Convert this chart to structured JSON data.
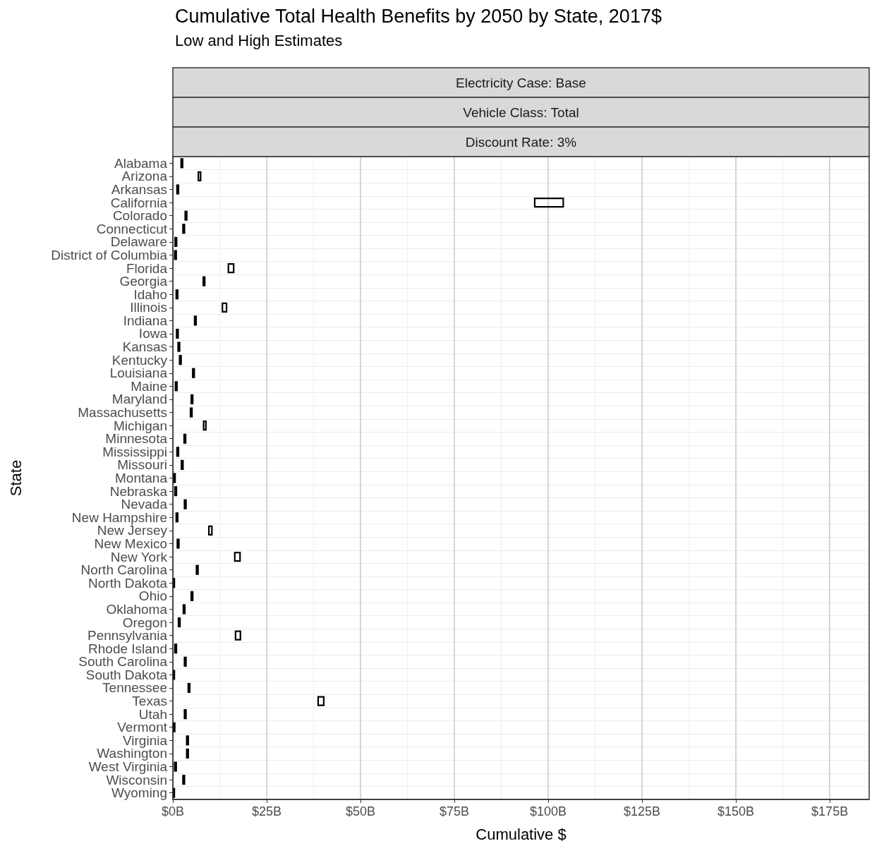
{
  "chart_data": {
    "type": "bar",
    "orientation": "horizontal",
    "title": "Cumulative Total Health Benefits by 2050 by State, 2017$",
    "subtitle": "Low and High Estimates",
    "annotations": [
      "Electricity Case: Base",
      "Vehicle Class: Total",
      "Discount Rate: 3%"
    ],
    "xlabel": "Cumulative $",
    "ylabel": "State",
    "categories": [
      "Alabama",
      "Arizona",
      "Arkansas",
      "California",
      "Colorado",
      "Connecticut",
      "Delaware",
      "District of Columbia",
      "Florida",
      "Georgia",
      "Idaho",
      "Illinois",
      "Indiana",
      "Iowa",
      "Kansas",
      "Kentucky",
      "Louisiana",
      "Maine",
      "Maryland",
      "Massachusetts",
      "Michigan",
      "Minnesota",
      "Mississippi",
      "Missouri",
      "Montana",
      "Nebraska",
      "Nevada",
      "New Hampshire",
      "New Jersey",
      "New Mexico",
      "New York",
      "North Carolina",
      "North Dakota",
      "Ohio",
      "Oklahoma",
      "Oregon",
      "Pennsylvania",
      "Rhode Island",
      "South Carolina",
      "South Dakota",
      "Tennessee",
      "Texas",
      "Utah",
      "Vermont",
      "Virginia",
      "Washington",
      "West Virginia",
      "Wisconsin",
      "Wyoming"
    ],
    "base": [
      2.2,
      6.8,
      1.1,
      96.4,
      3.3,
      2.7,
      0.6,
      0.5,
      14.8,
      8.1,
      0.9,
      13.2,
      5.8,
      1.0,
      1.4,
      1.8,
      5.3,
      0.7,
      4.9,
      4.7,
      8.2,
      3.0,
      1.1,
      2.3,
      0.2,
      0.55,
      3.1,
      0.9,
      9.6,
      1.2,
      16.5,
      6.3,
      0.1,
      4.9,
      2.8,
      1.5,
      16.7,
      0.55,
      3.1,
      0.1,
      4.1,
      38.7,
      3.1,
      0.1,
      3.7,
      3.7,
      0.5,
      2.7,
      0.1
    ],
    "values": [
      0.4,
      0.6,
      0.4,
      7.6,
      0.4,
      0.4,
      0.4,
      0.4,
      1.4,
      0.4,
      0.4,
      1.1,
      0.4,
      0.4,
      0.4,
      0.4,
      0.4,
      0.4,
      0.4,
      0.4,
      0.6,
      0.4,
      0.4,
      0.4,
      0.4,
      0.4,
      0.4,
      0.4,
      0.8,
      0.4,
      1.4,
      0.4,
      0.3,
      0.4,
      0.4,
      0.4,
      1.3,
      0.4,
      0.4,
      0.3,
      0.4,
      1.5,
      0.4,
      0.4,
      0.4,
      0.4,
      0.4,
      0.4,
      0.3
    ],
    "color": "#000000",
    "xlim": [
      0,
      185.5
    ],
    "xticks": [
      {
        "value": 0,
        "label": "$0B"
      },
      {
        "value": 25,
        "label": "$25B"
      },
      {
        "value": 50,
        "label": "$50B"
      },
      {
        "value": 75,
        "label": "$75B"
      },
      {
        "value": 100,
        "label": "$100B"
      },
      {
        "value": 125,
        "label": "$125B"
      },
      {
        "value": 150,
        "label": "$150B"
      },
      {
        "value": 175,
        "label": "$175B"
      }
    ],
    "grid": true
  }
}
